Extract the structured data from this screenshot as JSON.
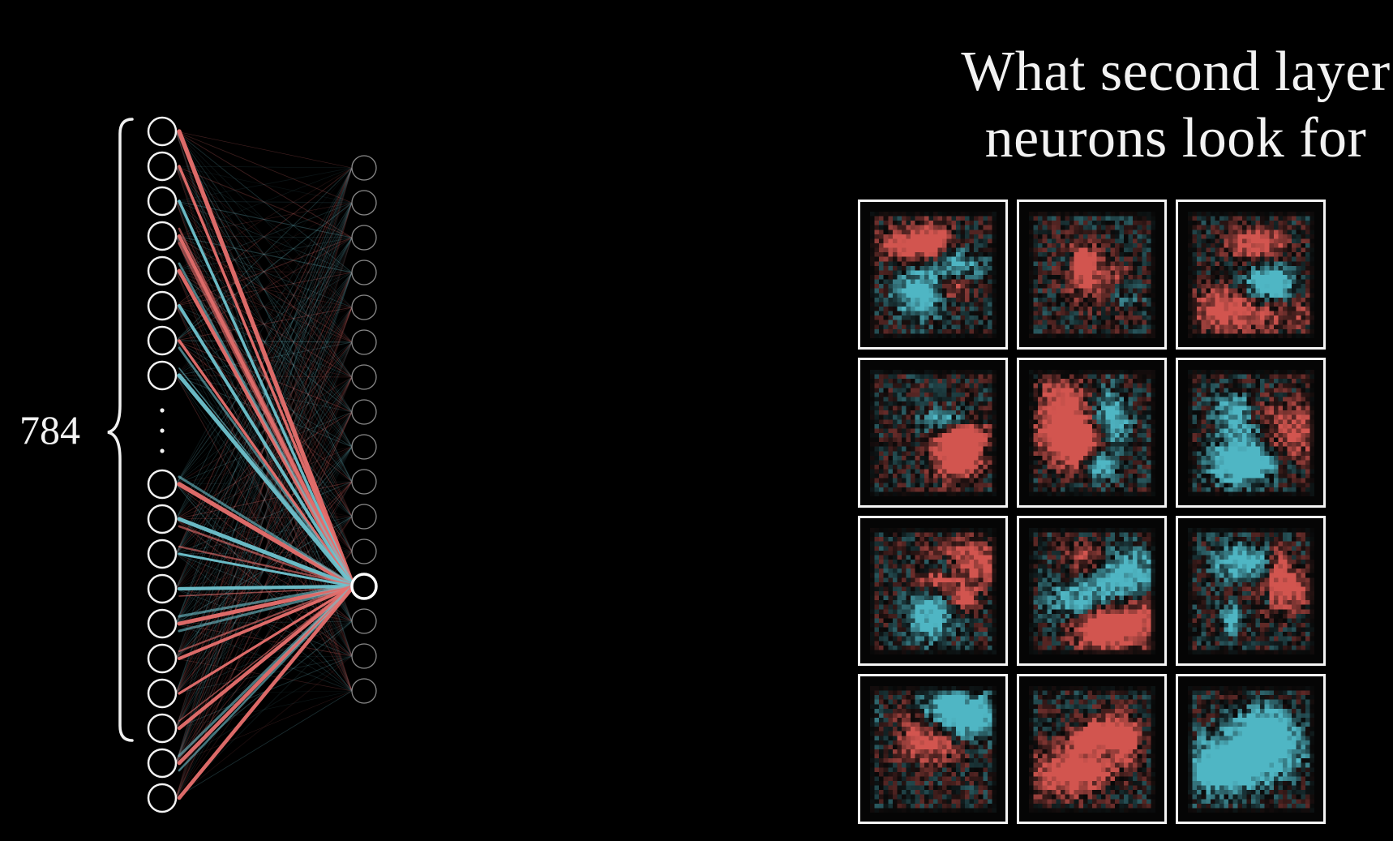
{
  "title": {
    "line1": "What second layer",
    "line2": "neurons look for"
  },
  "network": {
    "input_count_label": "784",
    "input_neurons_shown": 18,
    "input_neurons_above_ellipsis": 8,
    "hidden_neurons_shown": 16,
    "highlighted_hidden_index": 12,
    "edge_colors": {
      "positive": "#e8706e",
      "negative": "#6fc3cf"
    }
  },
  "weight_images": {
    "rows": 4,
    "cols": 3,
    "colors": {
      "positive": "#d2554f",
      "negative": "#4fb6c4",
      "background": "#0a0a0a"
    }
  }
}
